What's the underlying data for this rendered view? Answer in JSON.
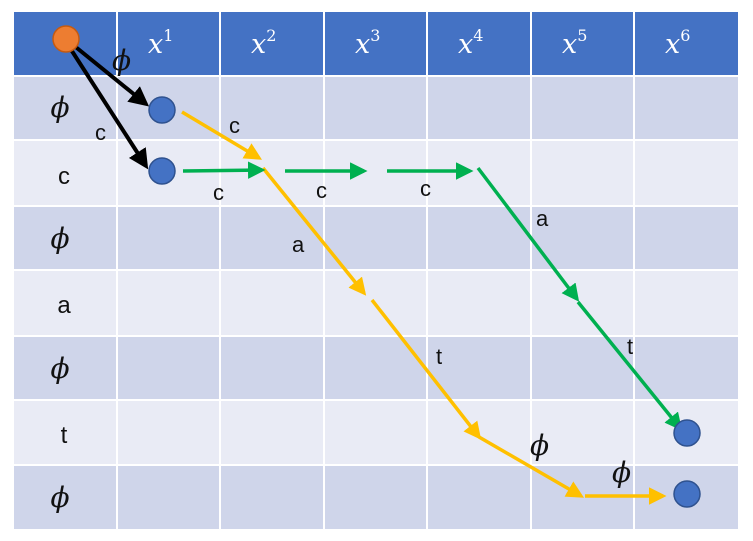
{
  "header": {
    "columns": [
      {
        "base": "x",
        "sup": "1"
      },
      {
        "base": "x",
        "sup": "2"
      },
      {
        "base": "x",
        "sup": "3"
      },
      {
        "base": "x",
        "sup": "4"
      },
      {
        "base": "x",
        "sup": "5"
      },
      {
        "base": "x",
        "sup": "6"
      }
    ]
  },
  "rows": [
    "ϕ",
    "c",
    "ϕ",
    "a",
    "ϕ",
    "t",
    "ϕ"
  ],
  "edge_labels": {
    "start_to_phi": "ϕ",
    "start_to_c": "c",
    "yellow_1": "c",
    "green_1": "c",
    "green_2": "c",
    "green_3": "c",
    "yellow_2": "a",
    "green_4": "a",
    "yellow_3": "t",
    "green_5": "t",
    "yellow_4": "ϕ",
    "yellow_5": "ϕ"
  },
  "colors": {
    "header": "#4472c4",
    "row_dark": "#cfd5ea",
    "row_light": "#e9ebf5",
    "grid_line": "#ffffff",
    "start_node": "#ed7d31",
    "node": "#4472c4",
    "path_yellow": "#ffc000",
    "path_green": "#00b050",
    "path_black": "#000000"
  }
}
